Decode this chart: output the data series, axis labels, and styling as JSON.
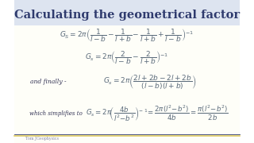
{
  "title": "Calculating the geometrical factor",
  "title_color": "#2f3b6e",
  "title_fontsize": 10.5,
  "bg_top_color": "#dde4f0",
  "bg_bottom_color": "#fffff0",
  "line3_prefix": "and finally -",
  "line4_prefix": "which simplifies to",
  "watermark": "Tom JGeophysics",
  "text_color": "#4a5a8a",
  "formula_color": "#5a6a7a",
  "watermark_color": "#8888aa"
}
